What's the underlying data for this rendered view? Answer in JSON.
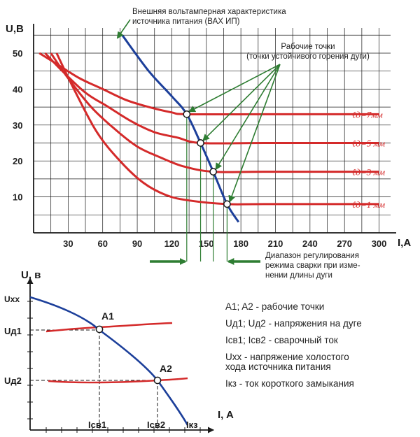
{
  "top_chart": {
    "y_axis_label": "U,B",
    "x_axis_label": "I,A",
    "y_ticks": [
      "10",
      "20",
      "30",
      "40",
      "50"
    ],
    "x_ticks": [
      "30",
      "60",
      "90",
      "120",
      "150",
      "180",
      "210",
      "240",
      "270",
      "300"
    ],
    "source_title_line1": "Внешняя вольтамперная характеристика",
    "source_title_line2": "источника питания (ВАХ ИП)",
    "work_points_line1": "Рабочие точки",
    "work_points_line2": "(точки устойчивого горения дуги)",
    "curve_labels": [
      "ℓд=7мм",
      "ℓд=5 мм",
      "ℓд=3 мм",
      "ℓд=1 мм"
    ],
    "range_line1": "Диапазон регулирования",
    "range_line2": "режима сварки при изме-",
    "range_line3": "нении длины дуги"
  },
  "chart_data": [
    {
      "type": "line",
      "title": "",
      "xlabel": "I,A",
      "ylabel": "U,B",
      "xlim": [
        0,
        310
      ],
      "ylim": [
        0,
        57
      ],
      "grid": true,
      "series": [
        {
          "name": "Внешняя вольтамперная характеристика источника питания (ВАХ ИП)",
          "x": [
            77,
            100,
            120,
            133,
            145,
            156,
            168,
            178
          ],
          "y": [
            55,
            45,
            38,
            33,
            25,
            17,
            8,
            3
          ]
        },
        {
          "name": "ℓд=7мм",
          "x": [
            5,
            20,
            40,
            60,
            80,
            100,
            120,
            133,
            200,
            300
          ],
          "y": [
            50,
            47,
            43,
            40,
            37,
            35,
            33.5,
            33,
            33,
            33
          ]
        },
        {
          "name": "ℓд=5 мм",
          "x": [
            10,
            25,
            45,
            65,
            85,
            105,
            125,
            145,
            200,
            300
          ],
          "y": [
            50,
            45,
            39,
            35,
            31,
            28,
            26.5,
            25,
            25,
            25
          ]
        },
        {
          "name": "ℓд=3 мм",
          "x": [
            15,
            30,
            50,
            70,
            90,
            110,
            130,
            156,
            200,
            300
          ],
          "y": [
            50,
            43,
            35,
            29,
            24,
            21,
            18.5,
            17,
            17,
            17
          ]
        },
        {
          "name": "ℓд=1 мм",
          "x": [
            20,
            35,
            55,
            75,
            95,
            115,
            135,
            168,
            200,
            300
          ],
          "y": [
            50,
            40,
            28,
            20,
            14,
            10.5,
            9,
            8,
            8,
            8
          ]
        }
      ],
      "work_points": [
        {
          "x": 133,
          "y": 33
        },
        {
          "x": 145,
          "y": 25
        },
        {
          "x": 156,
          "y": 17
        },
        {
          "x": 168,
          "y": 8
        }
      ],
      "regulation_range": [
        133,
        168
      ]
    }
  ],
  "bottom_chart": {
    "y_axis_label": "U, в",
    "x_axis_label": "I, A",
    "uxx_label": "Uxx",
    "ud1_label": "Uд1",
    "ud2_label": "Uд2",
    "a1_label": "A1",
    "a2_label": "A2",
    "icv1_label": "Iсв1",
    "icv2_label": "Iсв2",
    "ikz_label": "Iкз"
  },
  "legend": {
    "line1": "A1; A2 - рабочие точки",
    "line2": "Uд1; Uд2 - напряжения на дуге",
    "line3": "Iсв1; Iсв2 - сварочный ток",
    "line4": "Uxx - напряжение холостого",
    "line5": "хода источника питания",
    "line6": "Iкз - ток короткого замыкания"
  },
  "colors": {
    "source_curve": "#1c3f9a",
    "arc_curves": "#d42a2a",
    "guides": "#2e7d32",
    "arrows": "#2e7d32",
    "grid": "#1a1a1a",
    "text": "#222222"
  }
}
